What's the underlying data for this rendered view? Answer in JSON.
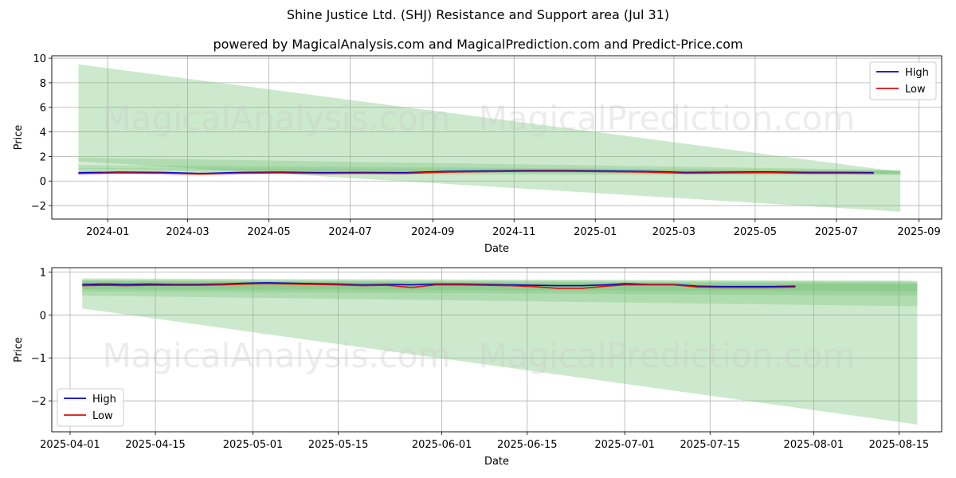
{
  "title": "Shine Justice Ltd. (SHJ) Resistance and Support area (Jul 31)",
  "subtitle": "powered by MagicalAnalysis.com and MagicalPrediction.com and Predict-Price.com",
  "watermarks": [
    "MagicalAnalysis.com",
    "MagicalPrediction.com"
  ],
  "colors": {
    "high": "#0000cc",
    "low": "#dd1111",
    "band": "#6fbf6f",
    "grid": "#b0b0b0"
  },
  "chart_data": [
    {
      "type": "line",
      "xlabel": "Date",
      "ylabel": "Price",
      "xticks": [
        "2024-01",
        "2024-03",
        "2024-05",
        "2024-07",
        "2024-09",
        "2024-11",
        "2025-01",
        "2025-03",
        "2025-05",
        "2025-07",
        "2025-09"
      ],
      "yticks": [
        "10",
        "8",
        "6",
        "4",
        "2",
        "0",
        "−2"
      ],
      "xlim": [
        "2023-11-20",
        "2025-09-18"
      ],
      "ylim": [
        -3.1,
        10.2
      ],
      "grid": true,
      "legend": {
        "position": "top-right",
        "entries": [
          "High",
          "Low"
        ]
      },
      "series": [
        {
          "name": "High",
          "x": [
            "2023-12-10",
            "2024-01-10",
            "2024-02-10",
            "2024-03-10",
            "2024-04-10",
            "2024-05-10",
            "2024-06-10",
            "2024-07-10",
            "2024-08-10",
            "2024-09-10",
            "2024-10-10",
            "2024-11-10",
            "2024-12-10",
            "2025-01-10",
            "2025-02-10",
            "2025-03-10",
            "2025-04-10",
            "2025-05-10",
            "2025-06-10",
            "2025-07-10",
            "2025-07-29"
          ],
          "values": [
            0.68,
            0.72,
            0.7,
            0.62,
            0.7,
            0.72,
            0.68,
            0.7,
            0.68,
            0.78,
            0.82,
            0.85,
            0.86,
            0.82,
            0.78,
            0.7,
            0.72,
            0.74,
            0.7,
            0.7,
            0.68
          ]
        },
        {
          "name": "Low",
          "x": [
            "2023-12-10",
            "2024-01-10",
            "2024-02-10",
            "2024-03-10",
            "2024-04-10",
            "2024-05-10",
            "2024-06-10",
            "2024-07-10",
            "2024-08-10",
            "2024-09-10",
            "2024-10-10",
            "2024-11-10",
            "2024-12-10",
            "2025-01-10",
            "2025-02-10",
            "2025-03-10",
            "2025-04-10",
            "2025-05-10",
            "2025-06-10",
            "2025-07-10",
            "2025-07-29"
          ],
          "values": [
            0.6,
            0.66,
            0.64,
            0.56,
            0.64,
            0.66,
            0.62,
            0.64,
            0.62,
            0.72,
            0.76,
            0.79,
            0.8,
            0.76,
            0.72,
            0.64,
            0.66,
            0.68,
            0.64,
            0.64,
            0.62
          ]
        }
      ],
      "bands": [
        {
          "x": [
            "2023-12-10",
            "2025-08-18"
          ],
          "upper": [
            9.5,
            0.75
          ],
          "lower": [
            1.6,
            -2.5
          ]
        },
        {
          "x": [
            "2023-12-10",
            "2025-08-18"
          ],
          "upper": [
            1.9,
            0.9
          ],
          "lower": [
            1.0,
            0.6
          ]
        },
        {
          "x": [
            "2023-12-10",
            "2025-08-18"
          ],
          "upper": [
            1.3,
            0.85
          ],
          "lower": [
            0.8,
            0.55
          ]
        },
        {
          "x": [
            "2023-12-10",
            "2025-08-18"
          ],
          "upper": [
            1.05,
            0.8
          ],
          "lower": [
            0.55,
            0.5
          ]
        }
      ]
    },
    {
      "type": "line",
      "xlabel": "Date",
      "ylabel": "Price",
      "xticks": [
        "2025-04-01",
        "2025-04-15",
        "2025-05-01",
        "2025-05-15",
        "2025-06-01",
        "2025-06-15",
        "2025-07-01",
        "2025-07-15",
        "2025-08-01",
        "2025-08-15"
      ],
      "yticks": [
        "1",
        "0",
        "−1",
        "−2"
      ],
      "xlim": [
        "2025-03-29",
        "2025-08-22"
      ],
      "ylim": [
        -2.72,
        1.1
      ],
      "grid": true,
      "legend": {
        "position": "bottom-left",
        "entries": [
          "High",
          "Low"
        ]
      },
      "series": [
        {
          "name": "High",
          "x": [
            "2025-04-03",
            "2025-04-07",
            "2025-04-10",
            "2025-04-14",
            "2025-04-18",
            "2025-04-22",
            "2025-04-26",
            "2025-04-30",
            "2025-05-03",
            "2025-05-07",
            "2025-05-11",
            "2025-05-15",
            "2025-05-19",
            "2025-05-23",
            "2025-05-27",
            "2025-05-31",
            "2025-06-04",
            "2025-06-08",
            "2025-06-12",
            "2025-06-16",
            "2025-06-20",
            "2025-06-24",
            "2025-06-28",
            "2025-07-01",
            "2025-07-05",
            "2025-07-09",
            "2025-07-13",
            "2025-07-17",
            "2025-07-21",
            "2025-07-25",
            "2025-07-29"
          ],
          "values": [
            0.71,
            0.72,
            0.71,
            0.72,
            0.71,
            0.71,
            0.72,
            0.74,
            0.75,
            0.74,
            0.73,
            0.72,
            0.7,
            0.71,
            0.7,
            0.72,
            0.72,
            0.71,
            0.7,
            0.69,
            0.68,
            0.68,
            0.7,
            0.73,
            0.71,
            0.71,
            0.67,
            0.66,
            0.66,
            0.66,
            0.67
          ]
        },
        {
          "name": "Low",
          "x": [
            "2025-04-03",
            "2025-04-07",
            "2025-04-10",
            "2025-04-14",
            "2025-04-18",
            "2025-04-22",
            "2025-04-26",
            "2025-04-30",
            "2025-05-03",
            "2025-05-07",
            "2025-05-11",
            "2025-05-15",
            "2025-05-19",
            "2025-05-23",
            "2025-05-27",
            "2025-05-31",
            "2025-06-04",
            "2025-06-08",
            "2025-06-12",
            "2025-06-16",
            "2025-06-20",
            "2025-06-24",
            "2025-06-28",
            "2025-07-01",
            "2025-07-05",
            "2025-07-09",
            "2025-07-13",
            "2025-07-17",
            "2025-07-21",
            "2025-07-25",
            "2025-07-29"
          ],
          "values": [
            0.68,
            0.69,
            0.68,
            0.69,
            0.69,
            0.69,
            0.7,
            0.72,
            0.73,
            0.72,
            0.71,
            0.7,
            0.68,
            0.69,
            0.64,
            0.7,
            0.7,
            0.69,
            0.68,
            0.66,
            0.62,
            0.62,
            0.67,
            0.7,
            0.7,
            0.7,
            0.65,
            0.64,
            0.64,
            0.64,
            0.65
          ]
        }
      ],
      "bands": [
        {
          "x": [
            "2025-04-03",
            "2025-08-18"
          ],
          "upper": [
            0.85,
            0.8
          ],
          "lower": [
            0.15,
            -2.55
          ]
        },
        {
          "x": [
            "2025-04-03",
            "2025-08-18"
          ],
          "upper": [
            0.82,
            0.78
          ],
          "lower": [
            0.45,
            0.2
          ]
        },
        {
          "x": [
            "2025-04-03",
            "2025-08-18"
          ],
          "upper": [
            0.8,
            0.75
          ],
          "lower": [
            0.55,
            0.45
          ]
        },
        {
          "x": [
            "2025-04-03",
            "2025-08-18"
          ],
          "upper": [
            0.78,
            0.72
          ],
          "lower": [
            0.6,
            0.55
          ]
        }
      ]
    }
  ]
}
